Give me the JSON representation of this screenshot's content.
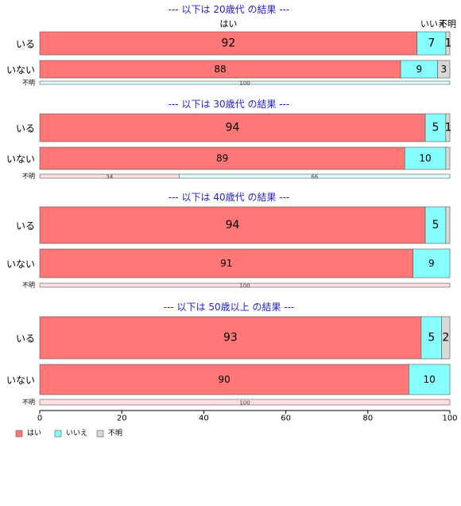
{
  "chart_data": {
    "type": "bar",
    "orientation": "horizontal",
    "stacked": true,
    "legend": [
      "はい",
      "いいえ",
      "不明"
    ],
    "legend_placement": "bottom-left",
    "column_labels": [
      "はい",
      "いいえ",
      "不明"
    ],
    "xlim": [
      0,
      100
    ],
    "xticks": [
      0,
      20,
      40,
      60,
      80,
      100
    ],
    "grid": false,
    "colors": {
      "yes": "#ff7777",
      "no": "#88ffff",
      "unknown": "#d8d8d8",
      "title": "#2222cc"
    },
    "panels": [
      {
        "title": "--- 以下は 20歳代 の結果 ---",
        "rows": [
          {
            "label": "いる",
            "values": [
              92,
              7,
              1
            ],
            "labels": [
              "92",
              "7",
              "1"
            ]
          },
          {
            "label": "いない",
            "values": [
              88,
              9,
              3
            ],
            "labels": [
              "88",
              "9",
              "3"
            ]
          },
          {
            "label": "不明",
            "values": [
              0,
              100,
              0
            ],
            "labels": [
              "",
              "100",
              ""
            ]
          }
        ]
      },
      {
        "title": "--- 以下は 30歳代 の結果 ---",
        "rows": [
          {
            "label": "いる",
            "values": [
              94,
              5,
              1
            ],
            "labels": [
              "94",
              "5",
              "1"
            ]
          },
          {
            "label": "いない",
            "values": [
              89,
              10,
              1
            ],
            "labels": [
              "89",
              "10",
              ""
            ]
          },
          {
            "label": "不明",
            "values": [
              34,
              66,
              0
            ],
            "labels": [
              "34",
              "66",
              ""
            ]
          }
        ]
      },
      {
        "title": "--- 以下は 40歳代 の結果 ---",
        "rows": [
          {
            "label": "いる",
            "values": [
              94,
              5,
              1
            ],
            "labels": [
              "94",
              "5",
              ""
            ]
          },
          {
            "label": "いない",
            "values": [
              91,
              9,
              0
            ],
            "labels": [
              "91",
              "9",
              ""
            ]
          },
          {
            "label": "不明",
            "values": [
              100,
              0,
              0
            ],
            "labels": [
              "100",
              "",
              ""
            ]
          }
        ]
      },
      {
        "title": "--- 以下は 50歳以上 の結果 ---",
        "rows": [
          {
            "label": "いる",
            "values": [
              93,
              5,
              2
            ],
            "labels": [
              "93",
              "5",
              "2"
            ]
          },
          {
            "label": "いない",
            "values": [
              90,
              10,
              0
            ],
            "labels": [
              "90",
              "10",
              ""
            ]
          },
          {
            "label": "不明",
            "values": [
              100,
              0,
              0
            ],
            "labels": [
              "100",
              "",
              ""
            ]
          }
        ]
      }
    ]
  }
}
